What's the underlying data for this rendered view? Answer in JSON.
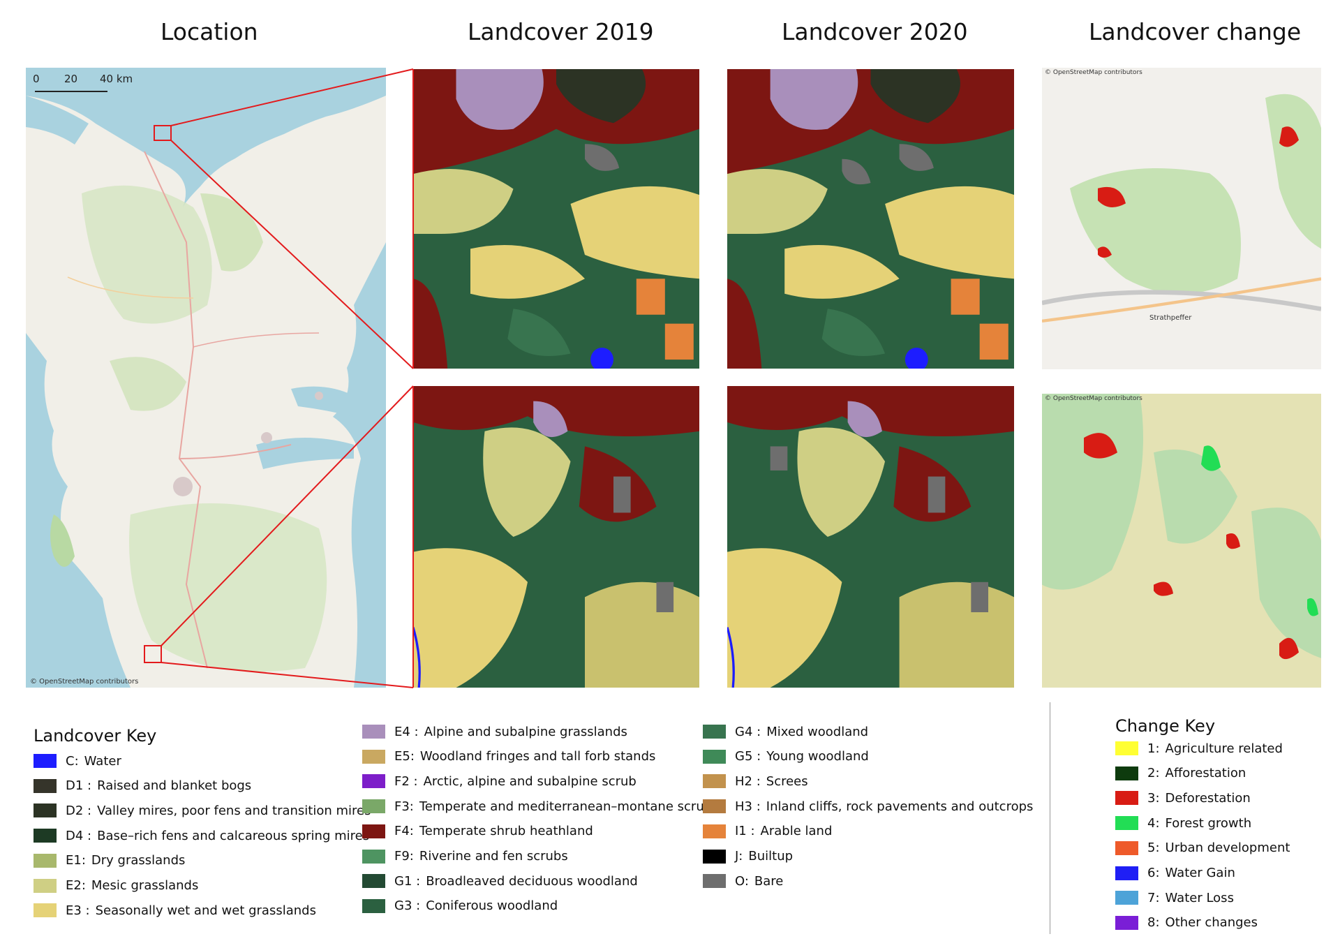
{
  "columns": {
    "location": "Location",
    "lc2019": "Landcover 2019",
    "lc2020": "Landcover 2020",
    "change": "Landcover change"
  },
  "attribution": "© OpenStreetMap contributors",
  "scale_bar": {
    "ticks": [
      "0",
      "20",
      "40 km"
    ]
  },
  "place_label": "Strathpeffer",
  "landcover_key": {
    "title": "Landcover Key",
    "items": [
      {
        "code": "C:",
        "label": "Water",
        "color": "#1d1dff"
      },
      {
        "code": "D1 :",
        "label": "Raised and blanket bogs",
        "color": "#35342a"
      },
      {
        "code": "D2 :",
        "label": "Valley mires, poor fens and transition mires",
        "color": "#2c3324"
      },
      {
        "code": "D4 :",
        "label": "Base–rich fens and calcareous spring mires",
        "color": "#1d3a24"
      },
      {
        "code": "E1:",
        "label": "Dry grasslands",
        "color": "#a8b86c"
      },
      {
        "code": "E2:",
        "label": "Mesic grasslands",
        "color": "#cfcf84"
      },
      {
        "code": "E3 :",
        "label": "Seasonally wet and wet grasslands",
        "color": "#e5d277"
      },
      {
        "code": "E4 :",
        "label": "Alpine and subalpine grasslands",
        "color": "#a98fbb"
      },
      {
        "code": "E5:",
        "label": "Woodland fringes and tall forb stands",
        "color": "#c9a861"
      },
      {
        "code": "F2 :",
        "label": "Arctic, alpine and subalpine scrub",
        "color": "#7d1ec9"
      },
      {
        "code": "F3:",
        "label": "Temperate and mediterranean–montane scrub",
        "color": "#7aa868"
      },
      {
        "code": "F4:",
        "label": "Temperate shrub heathland",
        "color": "#7d1612"
      },
      {
        "code": "F9:",
        "label": "Riverine and fen scrubs",
        "color": "#4e9461"
      },
      {
        "code": "G1 :",
        "label": "Broadleaved deciduous woodland",
        "color": "#234a33"
      },
      {
        "code": "G3 :",
        "label": "Coniferous woodland",
        "color": "#2b6040"
      },
      {
        "code": "G4 :",
        "label": "Mixed woodland",
        "color": "#38744f"
      },
      {
        "code": "G5 :",
        "label": "Young woodland",
        "color": "#3f8a58"
      },
      {
        "code": "H2 :",
        "label": "Screes",
        "color": "#c2924d"
      },
      {
        "code": "H3 :",
        "label": "Inland cliffs, rock pavements and outcrops",
        "color": "#b47b3f"
      },
      {
        "code": "I1 :",
        "label": "Arable land",
        "color": "#e5833a"
      },
      {
        "code": "J:",
        "label": "Builtup",
        "color": "#000000"
      },
      {
        "code": "O:",
        "label": "Bare",
        "color": "#6e6e6e"
      }
    ]
  },
  "change_key": {
    "title": "Change Key",
    "items": [
      {
        "code": "1:",
        "label": "Agriculture related",
        "color": "#ffff33"
      },
      {
        "code": "2:",
        "label": "Afforestation",
        "color": "#0e3b0e"
      },
      {
        "code": "3:",
        "label": "Deforestation",
        "color": "#d81c14"
      },
      {
        "code": "4:",
        "label": "Forest growth",
        "color": "#22dd55"
      },
      {
        "code": "5:",
        "label": "Urban development",
        "color": "#ee5a2a"
      },
      {
        "code": "6:",
        "label": "Water Gain",
        "color": "#1f1ff5"
      },
      {
        "code": "7:",
        "label": "Water Loss",
        "color": "#4da3d8"
      },
      {
        "code": "8:",
        "label": "Other changes",
        "color": "#7a1ed6"
      }
    ]
  }
}
